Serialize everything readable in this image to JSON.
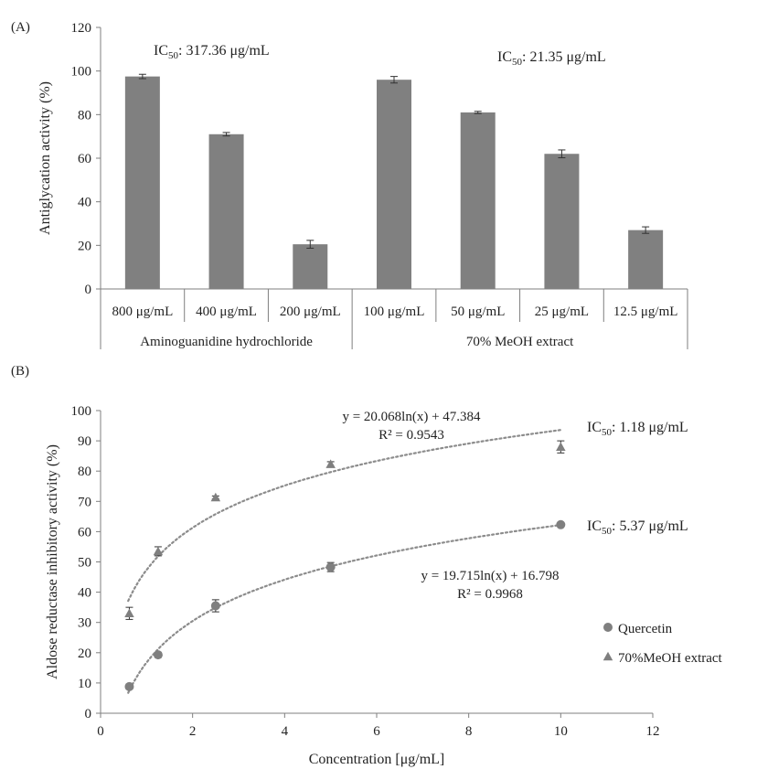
{
  "colors": {
    "bar": "#808080",
    "point": "#7f7f7f",
    "axis": "#7f7f7f",
    "text": "#222222"
  },
  "chart_data": [
    {
      "type": "bar",
      "panel_label": "(A)",
      "ylabel": "Antiglycation activity (%)",
      "ylim": [
        0,
        120
      ],
      "yticks": [
        0,
        20,
        40,
        60,
        80,
        100,
        120
      ],
      "grid": false,
      "categories": [
        "800 μg/mL",
        "400 μg/mL",
        "200 μg/mL",
        "100 μg/mL",
        "50 μg/mL",
        "25 μg/mL",
        "12.5 μg/mL"
      ],
      "values": [
        97.5,
        71.0,
        20.5,
        96.0,
        81.0,
        62.0,
        27.0
      ],
      "errors": [
        1.0,
        0.8,
        1.8,
        1.5,
        0.5,
        1.8,
        1.5
      ],
      "groups": [
        {
          "name": "Aminoguanidine hydrochloride",
          "start": 0,
          "count": 3,
          "ic50_prefix": "IC",
          "ic50_sub": "50",
          "ic50_value": ": 317.36 μg/mL"
        },
        {
          "name": "70% MeOH extract",
          "start": 3,
          "count": 4,
          "ic50_prefix": "IC",
          "ic50_sub": "50",
          "ic50_value": ": 21.35 μg/mL"
        }
      ]
    },
    {
      "type": "scatter",
      "panel_label": "(B)",
      "xlabel": "Concentration [μg/mL]",
      "ylabel": "Aldose reductase inhibitory activity (%)",
      "xlim": [
        0,
        12
      ],
      "ylim": [
        0,
        100
      ],
      "xticks": [
        0,
        2,
        4,
        6,
        8,
        10,
        12
      ],
      "yticks": [
        0,
        10,
        20,
        30,
        40,
        50,
        60,
        70,
        80,
        90,
        100
      ],
      "grid": false,
      "legend_position": "bottom-right",
      "series": [
        {
          "name": "Quercetin",
          "marker": "circle",
          "x": [
            0.625,
            1.25,
            2.5,
            5,
            10
          ],
          "y": [
            8.8,
            19.3,
            35.5,
            48.3,
            62.3
          ],
          "errors": [
            0.8,
            0.8,
            2.0,
            1.5,
            0.5
          ],
          "fit": {
            "a": 19.715,
            "b": 16.798
          },
          "equation": "y = 19.715ln(x) + 16.798",
          "r2": "R² = 0.9968",
          "ic50_prefix": "IC",
          "ic50_sub": "50",
          "ic50_value": ": 5.37 μg/mL"
        },
        {
          "name": "70%MeOH extract",
          "marker": "triangle",
          "x": [
            0.625,
            1.25,
            2.5,
            5,
            10
          ],
          "y": [
            33.0,
            53.5,
            71.3,
            82.3,
            88.0
          ],
          "errors": [
            2.0,
            1.5,
            0.5,
            0.8,
            2.0
          ],
          "fit": {
            "a": 20.068,
            "b": 47.384
          },
          "equation": "y = 20.068ln(x) + 47.384",
          "r2": "R² = 0.9543",
          "ic50_prefix": "IC",
          "ic50_sub": "50",
          "ic50_value": ": 1.18 μg/mL"
        }
      ]
    }
  ]
}
